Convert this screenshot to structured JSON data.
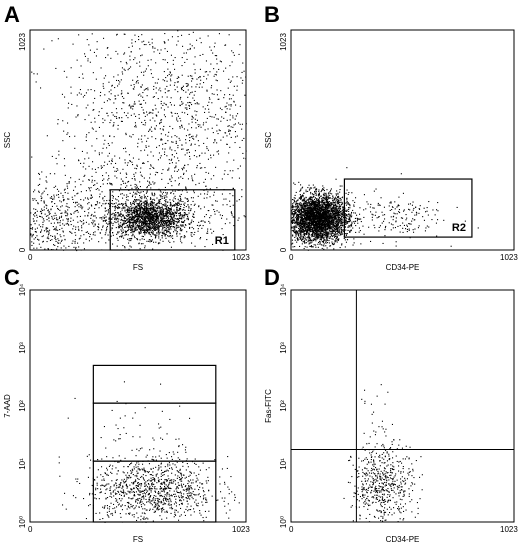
{
  "chart_data": [
    {
      "type": "scatter",
      "panel_label": "A",
      "xlabel": "FS",
      "ylabel": "SSC",
      "x_ticks": [
        "0",
        "1023"
      ],
      "y_ticks": [
        "0",
        "1023"
      ],
      "xlim": [
        0,
        1023
      ],
      "ylim": [
        0,
        1023
      ],
      "gates": [
        {
          "name": "R1",
          "x": [
            380,
            970
          ],
          "y": [
            0,
            280
          ]
        }
      ],
      "populations": [
        {
          "name": "",
          "center": [
            560,
            150
          ],
          "spread": [
            90,
            45
          ],
          "count": 1600
        },
        {
          "name": "",
          "center": [
            500,
            200
          ],
          "spread": [
            260,
            120
          ],
          "count": 700
        },
        {
          "name": "",
          "center": [
            650,
            650
          ],
          "spread": [
            260,
            240
          ],
          "count": 1200
        },
        {
          "name": "",
          "center": [
            120,
            120
          ],
          "spread": [
            90,
            90
          ],
          "count": 350
        }
      ]
    },
    {
      "type": "scatter",
      "panel_label": "B",
      "xlabel": "CD34-PE",
      "ylabel": "SSC",
      "x_ticks": [
        "0",
        "1023"
      ],
      "y_ticks": [
        "0",
        "1023"
      ],
      "xlim": [
        0,
        1023
      ],
      "ylim": [
        0,
        1023
      ],
      "gates": [
        {
          "name": "R2",
          "x": [
            245,
            830
          ],
          "y": [
            60,
            330
          ]
        }
      ],
      "populations": [
        {
          "name": "",
          "center": [
            120,
            150
          ],
          "spread": [
            70,
            55
          ],
          "count": 3500
        },
        {
          "name": "",
          "center": [
            460,
            160
          ],
          "spread": [
            120,
            55
          ],
          "count": 180
        }
      ]
    },
    {
      "type": "scatter",
      "panel_label": "C",
      "xlabel": "FS",
      "ylabel": "7-AAD",
      "x_ticks": [
        "0",
        "1023"
      ],
      "y_ticks": [
        "10⁰",
        "10¹",
        "10²",
        "10³",
        "10⁴"
      ],
      "xlim": [
        0,
        1023
      ],
      "ylim_decades": [
        0,
        4
      ],
      "gates": [
        {
          "name": "",
          "x": [
            300,
            880
          ],
          "y_dec": [
            0,
            1.05
          ]
        },
        {
          "name": "",
          "x": [
            300,
            880
          ],
          "y_dec": [
            1.05,
            2.05
          ]
        },
        {
          "name": "",
          "x": [
            300,
            880
          ],
          "y_dec": [
            2.05,
            2.7
          ]
        }
      ],
      "populations": [
        {
          "name": "",
          "center": [
            580,
            0.55
          ],
          "spread": [
            150,
            0.28
          ],
          "count": 1000
        },
        {
          "name": "",
          "center": [
            550,
            1.5
          ],
          "spread": [
            150,
            0.4
          ],
          "count": 60
        }
      ]
    },
    {
      "type": "scatter",
      "panel_label": "D",
      "xlabel": "CD34-PE",
      "ylabel": "Fas-FITC",
      "x_ticks": [
        "0",
        "1023"
      ],
      "y_ticks": [
        "10⁰",
        "10¹",
        "10²",
        "10³",
        "10⁴"
      ],
      "xlim": [
        0,
        1023
      ],
      "ylim_decades": [
        0,
        4
      ],
      "quadrant": {
        "x": 300,
        "y_dec": 1.25
      },
      "populations": [
        {
          "name": "",
          "center": [
            420,
            0.65
          ],
          "spread": [
            70,
            0.35
          ],
          "count": 550
        },
        {
          "name": "",
          "center": [
            380,
            1.7
          ],
          "spread": [
            40,
            0.35
          ],
          "count": 25
        }
      ]
    }
  ]
}
